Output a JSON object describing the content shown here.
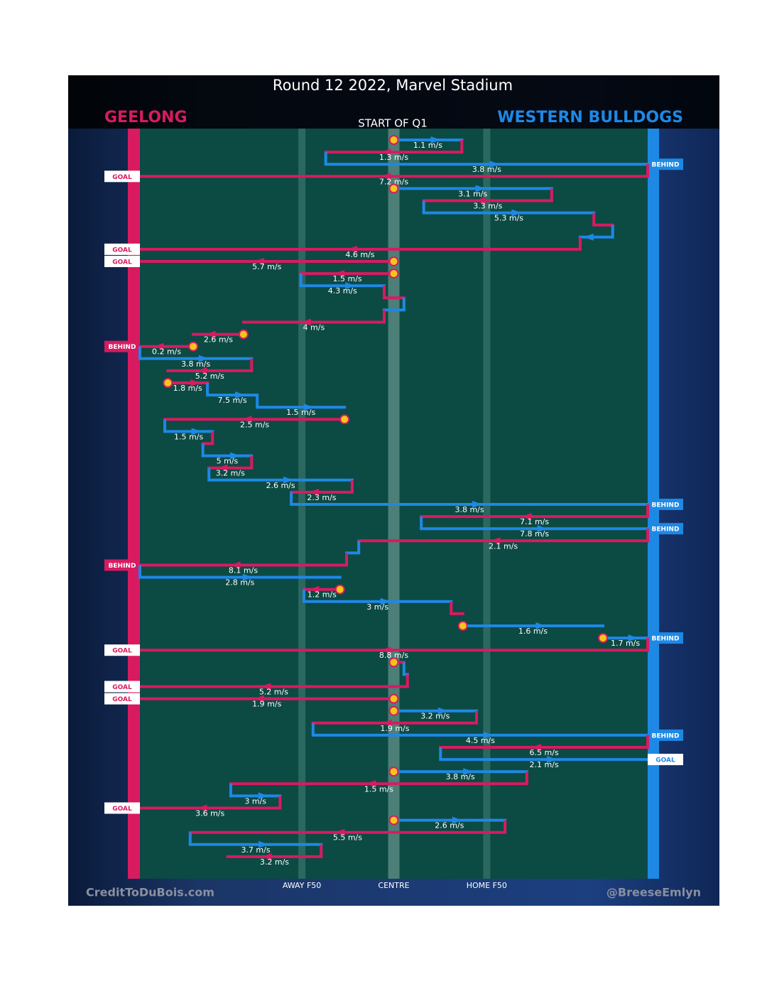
{
  "chart_data": {
    "type": "flow",
    "title": "Round 12 2022, Marvel Stadium",
    "subtitle": "START OF Q1",
    "teams": [
      {
        "name": "GEELONG",
        "color": "#d81b60"
      },
      {
        "name": "WESTERN BULLDOGS",
        "color": "#1e88e5"
      }
    ],
    "xlim": [
      0,
      100
    ],
    "xticks": [
      {
        "value": 31.9,
        "label": "AWAY F50"
      },
      {
        "value": 50,
        "label": "CENTRE"
      },
      {
        "value": 68.3,
        "label": "HOME F50"
      }
    ],
    "credits": [
      "CreditToDuBois.com",
      "@BreeseEmlyn"
    ],
    "possessions": [
      {
        "team": 1,
        "from": 50,
        "to": 63.4,
        "label": "1.1 m/s",
        "stoppage": true
      },
      {
        "team": 0,
        "from": 63.4,
        "to": 36.6,
        "label": "1.3 m/s"
      },
      {
        "team": 1,
        "from": 36.6,
        "to": 100,
        "label": "3.8 m/s",
        "result": "BEHIND"
      },
      {
        "team": 0,
        "from": 100,
        "to": 0,
        "label": "7.2 m/s",
        "result": "GOAL"
      },
      {
        "team": 1,
        "from": 50,
        "to": 81.1,
        "label": "3.1 m/s",
        "stoppage": true
      },
      {
        "team": 0,
        "from": 81.1,
        "to": 55.9,
        "label": "3.3 m/s"
      },
      {
        "team": 1,
        "from": 55.9,
        "to": 89.4,
        "label": "5.3 m/s"
      },
      {
        "team": 0,
        "from": 89.4,
        "to": 93.1
      },
      {
        "team": 1,
        "from": 93.1,
        "to": 86.7
      },
      {
        "team": 0,
        "from": 86.7,
        "to": 0,
        "label": "4.6 m/s",
        "result": "GOAL"
      },
      {
        "team": 0,
        "from": 50,
        "to": 0,
        "label": "5.7 m/s",
        "result": "GOAL",
        "stoppage": true
      },
      {
        "team": 0,
        "from": 50,
        "to": 31.7,
        "label": "1.5 m/s",
        "stoppage": true
      },
      {
        "team": 1,
        "from": 31.7,
        "to": 48.1,
        "label": "4.3 m/s"
      },
      {
        "team": 0,
        "from": 48.1,
        "to": 52.0
      },
      {
        "team": 1,
        "from": 52.0,
        "to": 48.1
      },
      {
        "team": 0,
        "from": 48.1,
        "to": 20.4,
        "label": "4 m/s"
      },
      {
        "team": 0,
        "from": 20.4,
        "to": 10.5,
        "label": "2.6 m/s",
        "stoppage": true
      },
      {
        "team": 0,
        "from": 10.5,
        "to": 0,
        "label": "0.2 m/s",
        "result": "BEHIND",
        "stoppage": true
      },
      {
        "team": 1,
        "from": 0,
        "to": 22.0,
        "label": "3.8 m/s"
      },
      {
        "team": 0,
        "from": 22.0,
        "to": 5.5,
        "label": "5.2 m/s"
      },
      {
        "team": 0,
        "from": 5.5,
        "to": 13.3,
        "label": "1.8 m/s",
        "stoppage": true
      },
      {
        "team": 1,
        "from": 13.3,
        "to": 23.1,
        "label": "7.5 m/s"
      },
      {
        "team": 1,
        "from": 23.1,
        "to": 40.3,
        "label": "1.5 m/s"
      },
      {
        "team": 0,
        "from": 40.3,
        "to": 4.9,
        "label": "2.5 m/s",
        "stoppage": true
      },
      {
        "team": 1,
        "from": 4.9,
        "to": 14.3,
        "label": "1.5 m/s"
      },
      {
        "team": 0,
        "from": 14.3,
        "to": 12.4
      },
      {
        "team": 1,
        "from": 12.4,
        "to": 22.0,
        "label": "5 m/s"
      },
      {
        "team": 0,
        "from": 22.0,
        "to": 13.6,
        "label": "3.2 m/s"
      },
      {
        "team": 1,
        "from": 13.6,
        "to": 41.8,
        "label": "2.6 m/s"
      },
      {
        "team": 0,
        "from": 41.8,
        "to": 29.8,
        "label": "2.3 m/s"
      },
      {
        "team": 1,
        "from": 29.8,
        "to": 100,
        "label": "3.8 m/s",
        "result": "BEHIND"
      },
      {
        "team": 0,
        "from": 100,
        "to": 55.4,
        "label": "7.1 m/s"
      },
      {
        "team": 1,
        "from": 55.4,
        "to": 100,
        "label": "7.8 m/s",
        "result": "BEHIND"
      },
      {
        "team": 0,
        "from": 100,
        "to": 43.1,
        "label": "2.1 m/s"
      },
      {
        "team": 1,
        "from": 43.1,
        "to": 40.7
      },
      {
        "team": 0,
        "from": 40.7,
        "to": 0,
        "label": "8.1 m/s",
        "result": "BEHIND"
      },
      {
        "team": 1,
        "from": 0,
        "to": 39.4,
        "label": "2.8 m/s"
      },
      {
        "team": 0,
        "from": 39.4,
        "to": 32.3,
        "label": "1.2 m/s",
        "stoppage": true
      },
      {
        "team": 1,
        "from": 32.3,
        "to": 61.3,
        "label": "3 m/s"
      },
      {
        "team": 0,
        "from": 61.3,
        "to": 63.6
      },
      {
        "team": 1,
        "from": 63.6,
        "to": 91.2,
        "label": "1.6 m/s",
        "stoppage": true
      },
      {
        "team": 1,
        "from": 91.2,
        "to": 100,
        "label": "1.7 m/s",
        "result": "BEHIND",
        "stoppage": true
      },
      {
        "team": 0,
        "from": 100,
        "to": 0,
        "label": "8.8 m/s",
        "result": "GOAL"
      },
      {
        "team": 0,
        "from": 50,
        "to": 52.0,
        "stoppage": true
      },
      {
        "team": 1,
        "from": 52.0,
        "to": 52.7
      },
      {
        "team": 0,
        "from": 52.7,
        "to": 0,
        "label": "5.2 m/s",
        "result": "GOAL"
      },
      {
        "team": 0,
        "from": 50,
        "to": 0,
        "label": "1.9 m/s",
        "result": "GOAL",
        "stoppage": true
      },
      {
        "team": 1,
        "from": 50,
        "to": 66.3,
        "label": "3.2 m/s",
        "stoppage": true
      },
      {
        "team": 0,
        "from": 66.3,
        "to": 34.1,
        "label": "1.9 m/s"
      },
      {
        "team": 1,
        "from": 34.1,
        "to": 100,
        "label": "4.5 m/s",
        "result": "BEHIND"
      },
      {
        "team": 0,
        "from": 100,
        "to": 59.2,
        "label": "6.5 m/s"
      },
      {
        "team": 1,
        "from": 59.2,
        "to": 100,
        "label": "2.1 m/s",
        "result": "GOAL"
      },
      {
        "team": 1,
        "from": 50,
        "to": 76.2,
        "label": "3.8 m/s",
        "stoppage": true
      },
      {
        "team": 0,
        "from": 76.2,
        "to": 17.9,
        "label": "1.5 m/s"
      },
      {
        "team": 1,
        "from": 17.9,
        "to": 27.6,
        "label": "3 m/s"
      },
      {
        "team": 0,
        "from": 27.6,
        "to": 0,
        "label": "3.6 m/s",
        "result": "GOAL"
      },
      {
        "team": 1,
        "from": 50,
        "to": 71.9,
        "label": "2.6 m/s",
        "stoppage": true
      },
      {
        "team": 0,
        "from": 71.9,
        "to": 9.9,
        "label": "5.5 m/s"
      },
      {
        "team": 1,
        "from": 9.9,
        "to": 35.7,
        "label": "3.7 m/s"
      },
      {
        "team": 0,
        "from": 35.7,
        "to": 17.3,
        "label": "3.2 m/s"
      }
    ]
  }
}
